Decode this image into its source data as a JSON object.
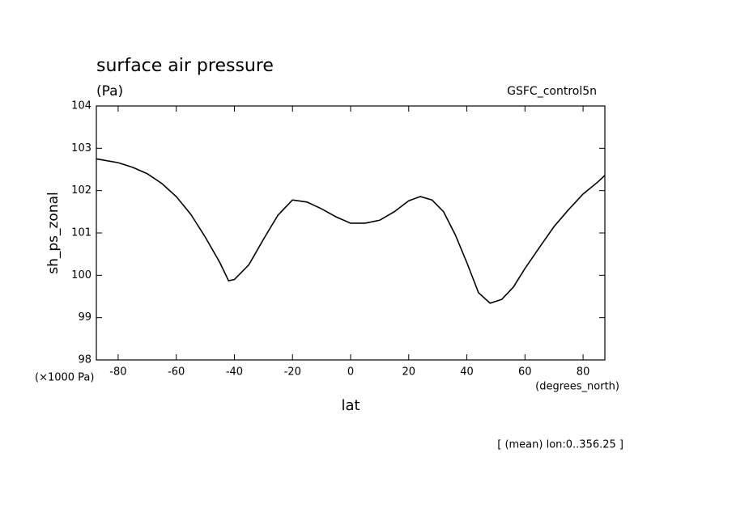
{
  "chart_data": {
    "type": "line",
    "title": "surface air pressure",
    "subtitle": "(Pa)",
    "dataset": "GSFC_control5n",
    "y_label": "sh_ps_zonal",
    "y_unit": "(×1000 Pa)",
    "x_label": "lat",
    "x_unit": "(degrees_north)",
    "note": "[ (mean) lon:0..356.25 ]",
    "x": [
      -87.5,
      -80,
      -75,
      -70,
      -65,
      -60,
      -55,
      -50,
      -45,
      -42,
      -40,
      -35,
      -30,
      -25,
      -20,
      -15,
      -10,
      -5,
      0,
      5,
      10,
      15,
      20,
      24,
      28,
      32,
      36,
      40,
      44,
      48,
      52,
      56,
      60,
      65,
      70,
      75,
      80,
      85,
      87.5
    ],
    "series": [
      {
        "name": "sh_ps_zonal",
        "color": "#000000",
        "values": [
          102.75,
          102.66,
          102.55,
          102.4,
          102.17,
          101.86,
          101.44,
          100.9,
          100.3,
          99.87,
          99.9,
          100.25,
          100.85,
          101.42,
          101.78,
          101.73,
          101.57,
          101.38,
          101.23,
          101.23,
          101.3,
          101.5,
          101.76,
          101.86,
          101.78,
          101.5,
          100.96,
          100.3,
          99.59,
          99.34,
          99.43,
          99.72,
          100.16,
          100.66,
          101.15,
          101.55,
          101.92,
          102.2,
          102.36
        ]
      }
    ],
    "xlim": [
      -87.5,
      87.5
    ],
    "ylim": [
      98,
      104
    ],
    "xticks": [
      -80,
      -60,
      -40,
      -20,
      0,
      20,
      40,
      60,
      80
    ],
    "yticks": [
      98,
      99,
      100,
      101,
      102,
      103,
      104
    ]
  }
}
